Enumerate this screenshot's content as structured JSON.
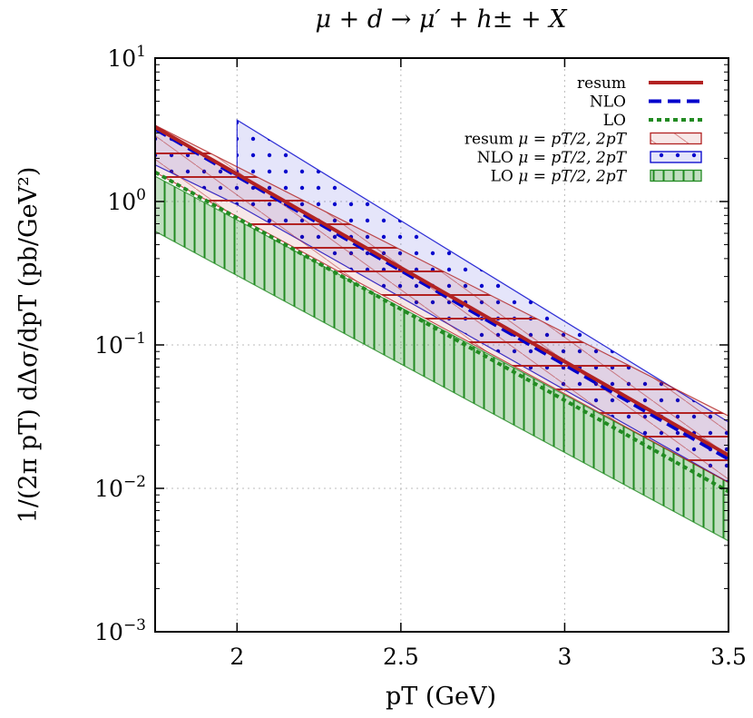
{
  "chart_data": {
    "type": "line",
    "title": "μ + d → μ′ + h± + X",
    "xlabel": "pT (GeV)",
    "ylabel": "1/(2π pT) dΔσ/dpT (pb/GeV²)",
    "xlim": [
      1.75,
      3.5
    ],
    "ylim": [
      0.001,
      10
    ],
    "yscale": "log",
    "grid": true,
    "legend_position": "top-right",
    "x_ticks": [
      2,
      2.5,
      3,
      3.5
    ],
    "x_tick_labels": [
      "2",
      "2.5",
      "3",
      "3.5"
    ],
    "y_ticks": [
      0.001,
      0.01,
      0.1,
      1,
      10
    ],
    "y_tick_labels": [
      {
        "base": "10",
        "exp": "−3"
      },
      {
        "base": "10",
        "exp": "−2"
      },
      {
        "base": "10",
        "exp": "−1"
      },
      {
        "base": "10",
        "exp": "0"
      },
      {
        "base": "10",
        "exp": "1"
      }
    ],
    "series": [
      {
        "name": "resum",
        "kind": "line",
        "color": "#b22222",
        "dash": "solid",
        "x": [
          1.75,
          3.5
        ],
        "y": [
          3.3,
          0.017
        ]
      },
      {
        "name": "NLO",
        "kind": "line",
        "color": "#0000cc",
        "dash": "dashed",
        "x": [
          1.75,
          3.5
        ],
        "y": [
          3.2,
          0.016
        ]
      },
      {
        "name": "LO",
        "kind": "line",
        "color": "#228b22",
        "dash": "dotted",
        "x": [
          1.75,
          3.5
        ],
        "y": [
          1.6,
          0.0095
        ]
      },
      {
        "name": "resum μ = pT/2, 2pT",
        "kind": "band",
        "color": "#b22222",
        "fill": "hatch",
        "x": [
          1.75,
          3.5
        ],
        "lower": [
          1.6,
          0.011
        ],
        "upper": [
          3.4,
          0.032
        ]
      },
      {
        "name": "NLO μ = pT/2, 2pT",
        "kind": "band",
        "color": "#0000cc",
        "fill": "dots",
        "x": [
          1.75,
          2.0,
          2.0,
          3.5
        ],
        "lower": [
          1.8,
          0.95,
          0.95,
          0.011
        ],
        "upper": [
          3.4,
          1.5,
          3.7,
          0.029
        ]
      },
      {
        "name": "LO μ = pT/2, 2pT",
        "kind": "band",
        "color": "#228b22",
        "fill": "vlines",
        "x": [
          1.75,
          3.5
        ],
        "lower": [
          0.62,
          0.0043
        ],
        "upper": [
          1.5,
          0.011
        ]
      }
    ],
    "legend_entries": [
      {
        "label_prefix": "resum",
        "label_math": ""
      },
      {
        "label_prefix": "NLO",
        "label_math": ""
      },
      {
        "label_prefix": "LO",
        "label_math": ""
      },
      {
        "label_prefix": "resum",
        "label_math": "μ = pT/2, 2pT"
      },
      {
        "label_prefix": "NLO",
        "label_math": "μ = pT/2, 2pT"
      },
      {
        "label_prefix": "LO",
        "label_math": "μ = pT/2, 2pT"
      }
    ]
  }
}
